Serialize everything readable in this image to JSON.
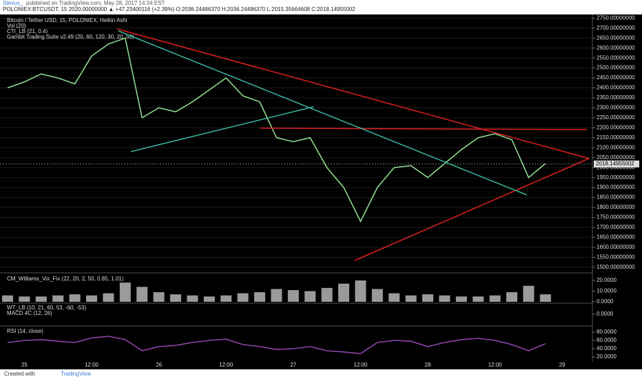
{
  "header": {
    "author": "Stevus_",
    "published": "published on TradingView.com, May 28, 2017 14:34 EST",
    "quote": "POLONIEX:BTCUSDT, 15 2020.00000000 ▲ +47.23400116 (+2.39%) O:2036.24486370 H:2036.24486370 L:2015.35664608 C:2018.14955002"
  },
  "footer": {
    "created": "Created with",
    "brand": "TradingView"
  },
  "chart_data": [
    {
      "type": "line",
      "title": "Bitcoin / Tether USD, 15, POLONIEX, Heikin Ashi",
      "legend_lines": [
        "Vol (20)",
        "CTI_LB (21, 0.4)",
        "Gambit Trading Suite v2.49 (20, 60, 120, 30, 20, 50)"
      ],
      "categories": [
        null,
        "25",
        null,
        null,
        null,
        "12:00",
        null,
        null,
        null,
        "26",
        null,
        null,
        null,
        "12:00",
        null,
        null,
        null,
        "27",
        null,
        null,
        null,
        "12:00",
        null,
        null,
        null,
        "28",
        null,
        null,
        null,
        "12:00",
        null,
        null,
        null,
        "29",
        null,
        null
      ],
      "series": [
        {
          "name": "BTCUSDT",
          "color": "#8fd88f",
          "values": [
            2400,
            2430,
            2470,
            2450,
            2420,
            2560,
            2620,
            2650,
            2250,
            2300,
            2280,
            2330,
            2390,
            2450,
            2360,
            2330,
            2150,
            2130,
            2150,
            2000,
            1900,
            1730,
            1900,
            2000,
            2010,
            1950,
            2020,
            2090,
            2150,
            2170,
            2140,
            1950,
            2020,
            null,
            null,
            null
          ]
        }
      ],
      "last_price": {
        "value": 2018.14955002,
        "label": "2018.14955002"
      },
      "ylim": [
        1475,
        2765
      ],
      "grid": true,
      "yticks": [
        {
          "value": 1500,
          "label": "1500.00000000"
        },
        {
          "value": 1550,
          "label": "1550.00000000"
        },
        {
          "value": 1600,
          "label": "1600.00000000"
        },
        {
          "value": 1650,
          "label": "1650.00000000"
        },
        {
          "value": 1700,
          "label": "1700.00000000"
        },
        {
          "value": 1750,
          "label": "1750.00000000"
        },
        {
          "value": 1800,
          "label": "1800.00000000"
        },
        {
          "value": 1850,
          "label": "1850.00000000"
        },
        {
          "value": 1900,
          "label": "1900.00000000"
        },
        {
          "value": 1950,
          "label": "1950.00000000"
        },
        {
          "value": 2000,
          "label": "2000.00000000"
        },
        {
          "value": 2050,
          "label": "2050.00000000"
        },
        {
          "value": 2100,
          "label": "2100.00000000"
        },
        {
          "value": 2150,
          "label": "2150.00000000"
        },
        {
          "value": 2200,
          "label": "2200.00000000"
        },
        {
          "value": 2250,
          "label": "2250.00000000"
        },
        {
          "value": 2300,
          "label": "2300.00000000"
        },
        {
          "value": 2350,
          "label": "2350.00000000"
        },
        {
          "value": 2400,
          "label": "2400.00000000"
        },
        {
          "value": 2450,
          "label": "2450.00000000"
        },
        {
          "value": 2500,
          "label": "2500.00000000"
        },
        {
          "value": 2550,
          "label": "2550.00000000"
        },
        {
          "value": 2600,
          "label": "2600.00000000"
        },
        {
          "value": 2650,
          "label": "2650.00000000"
        },
        {
          "value": 2700,
          "label": "2700.00000000"
        },
        {
          "value": 2750,
          "label": "2750.00000000"
        }
      ]
    },
    {
      "type": "bar",
      "title": "CM_Williams_Vix_Fix (22, 20, 2, 50, 0.85, 1.01)",
      "color": "#9a9a9a",
      "values": [
        6,
        5,
        5,
        6,
        7,
        6,
        8,
        18,
        14,
        9,
        7,
        6,
        5,
        6,
        8,
        9,
        12,
        11,
        10,
        13,
        17,
        20,
        12,
        8,
        6,
        7,
        6,
        5,
        5,
        6,
        9,
        15,
        7
      ],
      "ylim": [
        0,
        25.8
      ],
      "yticks": [
        {
          "value": 20,
          "label": "20.0000"
        },
        {
          "value": 10,
          "label": "10.0000"
        },
        {
          "value": 0,
          "label": "0.0000"
        }
      ]
    },
    {
      "type": "ticks",
      "title": "WT_LB (10, 21, 60, 53, -60, -53)",
      "subtitle": "MACD 4C (12, 26)",
      "ylim": [
        -60,
        60
      ],
      "yticks": [
        {
          "value": 0,
          "label": "0.0000"
        }
      ]
    },
    {
      "type": "line",
      "title": "RSI (14, close)",
      "series": [
        {
          "name": "RSI",
          "color": "#8e44ad",
          "values": [
            55,
            60,
            62,
            58,
            55,
            66,
            70,
            62,
            35,
            45,
            48,
            55,
            60,
            63,
            50,
            45,
            38,
            40,
            45,
            35,
            32,
            28,
            55,
            60,
            58,
            45,
            55,
            62,
            65,
            60,
            50,
            35,
            52
          ]
        }
      ],
      "ylim": [
        10,
        90
      ],
      "yticks": [
        {
          "value": 80,
          "label": "80.0000"
        },
        {
          "value": 60,
          "label": "60.0000"
        },
        {
          "value": 40,
          "label": "40.0000"
        },
        {
          "value": 20,
          "label": "20.0000"
        }
      ]
    }
  ]
}
